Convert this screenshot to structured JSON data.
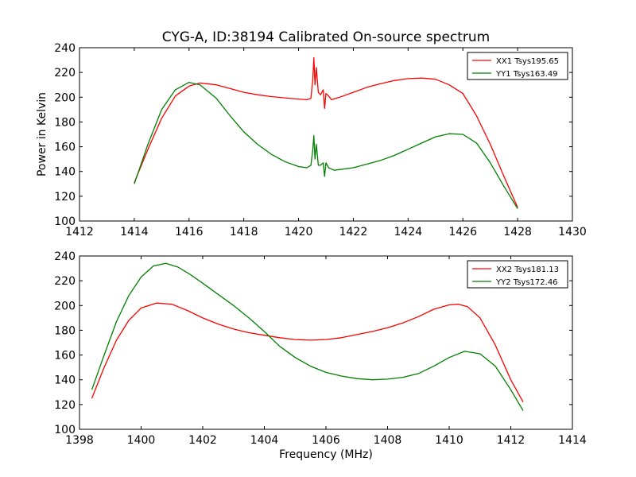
{
  "figure": {
    "title": "CYG-A, ID:38194 Calibrated On-source spectrum",
    "ylabel": "Power in Kelvin",
    "xlabel": "Frequency (MHz)"
  },
  "chart_data": [
    {
      "type": "line",
      "panel": "top",
      "xlim": [
        1412,
        1430
      ],
      "ylim": [
        100,
        240
      ],
      "xticks": [
        1412,
        1414,
        1416,
        1418,
        1420,
        1422,
        1424,
        1426,
        1428,
        1430
      ],
      "yticks": [
        100,
        120,
        140,
        160,
        180,
        200,
        220,
        240
      ],
      "grid": false,
      "legend": "top-right",
      "series": [
        {
          "name": "XX1 Tsys195.65",
          "color": "#ff0000",
          "points": [
            [
              1414.0,
              131
            ],
            [
              1414.5,
              158
            ],
            [
              1415.0,
              183
            ],
            [
              1415.5,
              201
            ],
            [
              1416.0,
              209
            ],
            [
              1416.4,
              211.5
            ],
            [
              1417.0,
              210
            ],
            [
              1417.5,
              207
            ],
            [
              1418.0,
              204
            ],
            [
              1418.5,
              202
            ],
            [
              1419.0,
              200.5
            ],
            [
              1419.5,
              199.5
            ],
            [
              1420.0,
              198.5
            ],
            [
              1420.3,
              198
            ],
            [
              1420.45,
              199
            ],
            [
              1420.52,
              215
            ],
            [
              1420.56,
              232
            ],
            [
              1420.6,
              210
            ],
            [
              1420.65,
              224
            ],
            [
              1420.72,
              204
            ],
            [
              1420.8,
              202
            ],
            [
              1420.9,
              206
            ],
            [
              1420.95,
              191
            ],
            [
              1421.0,
              203
            ],
            [
              1421.1,
              201
            ],
            [
              1421.2,
              198
            ],
            [
              1421.5,
              200
            ],
            [
              1422.0,
              204
            ],
            [
              1422.5,
              208
            ],
            [
              1423.0,
              211
            ],
            [
              1423.5,
              213.5
            ],
            [
              1424.0,
              215
            ],
            [
              1424.5,
              215.5
            ],
            [
              1425.0,
              214.5
            ],
            [
              1425.5,
              210
            ],
            [
              1426.0,
              203
            ],
            [
              1426.5,
              185
            ],
            [
              1427.0,
              162
            ],
            [
              1427.5,
              136
            ],
            [
              1428.0,
              111
            ]
          ]
        },
        {
          "name": "YY1 Tsys163.49",
          "color": "#008000",
          "points": [
            [
              1414.0,
              130
            ],
            [
              1414.5,
              162
            ],
            [
              1415.0,
              190
            ],
            [
              1415.5,
              206
            ],
            [
              1416.0,
              212
            ],
            [
              1416.4,
              210
            ],
            [
              1417.0,
              199
            ],
            [
              1417.5,
              185
            ],
            [
              1418.0,
              172
            ],
            [
              1418.5,
              162
            ],
            [
              1419.0,
              154
            ],
            [
              1419.5,
              148
            ],
            [
              1420.0,
              144
            ],
            [
              1420.3,
              143
            ],
            [
              1420.45,
              145
            ],
            [
              1420.52,
              158
            ],
            [
              1420.56,
              169
            ],
            [
              1420.6,
              150
            ],
            [
              1420.65,
              162
            ],
            [
              1420.72,
              145
            ],
            [
              1420.8,
              145
            ],
            [
              1420.9,
              147
            ],
            [
              1420.95,
              136
            ],
            [
              1421.0,
              147
            ],
            [
              1421.1,
              143
            ],
            [
              1421.3,
              141
            ],
            [
              1422.0,
              143
            ],
            [
              1422.5,
              146
            ],
            [
              1423.0,
              149
            ],
            [
              1423.5,
              153
            ],
            [
              1424.0,
              158
            ],
            [
              1424.5,
              163
            ],
            [
              1425.0,
              168
            ],
            [
              1425.5,
              170.5
            ],
            [
              1426.0,
              170
            ],
            [
              1426.5,
              163
            ],
            [
              1427.0,
              147
            ],
            [
              1427.5,
              128
            ],
            [
              1428.0,
              110
            ]
          ]
        }
      ]
    },
    {
      "type": "line",
      "panel": "bottom",
      "xlim": [
        1398,
        1414
      ],
      "ylim": [
        100,
        240
      ],
      "xticks": [
        1398,
        1400,
        1402,
        1404,
        1406,
        1408,
        1410,
        1412,
        1414
      ],
      "yticks": [
        100,
        120,
        140,
        160,
        180,
        200,
        220,
        240
      ],
      "grid": false,
      "legend": "top-right",
      "series": [
        {
          "name": "XX2 Tsys181.13",
          "color": "#ff0000",
          "points": [
            [
              1398.4,
              125
            ],
            [
              1398.8,
              150
            ],
            [
              1399.2,
              172
            ],
            [
              1399.6,
              188
            ],
            [
              1400.0,
              198
            ],
            [
              1400.5,
              202
            ],
            [
              1401.0,
              201
            ],
            [
              1401.5,
              196
            ],
            [
              1402.0,
              190
            ],
            [
              1402.5,
              185
            ],
            [
              1403.0,
              181
            ],
            [
              1403.5,
              178
            ],
            [
              1404.0,
              176
            ],
            [
              1404.5,
              174
            ],
            [
              1405.0,
              172.5
            ],
            [
              1405.5,
              172
            ],
            [
              1406.0,
              172.5
            ],
            [
              1406.5,
              174
            ],
            [
              1407.0,
              176.5
            ],
            [
              1407.5,
              179
            ],
            [
              1408.0,
              182
            ],
            [
              1408.5,
              186
            ],
            [
              1409.0,
              191
            ],
            [
              1409.5,
              197
            ],
            [
              1410.0,
              200.5
            ],
            [
              1410.3,
              201
            ],
            [
              1410.6,
              199
            ],
            [
              1411.0,
              190
            ],
            [
              1411.5,
              168
            ],
            [
              1412.0,
              140
            ],
            [
              1412.4,
              122
            ]
          ]
        },
        {
          "name": "YY2 Tsys172.46",
          "color": "#008000",
          "points": [
            [
              1398.4,
              132
            ],
            [
              1398.8,
              160
            ],
            [
              1399.2,
              187
            ],
            [
              1399.6,
              208
            ],
            [
              1400.0,
              223
            ],
            [
              1400.4,
              232
            ],
            [
              1400.8,
              234
            ],
            [
              1401.2,
              231
            ],
            [
              1401.6,
              225
            ],
            [
              1402.0,
              218
            ],
            [
              1402.5,
              209
            ],
            [
              1403.0,
              200
            ],
            [
              1403.5,
              190
            ],
            [
              1404.0,
              179
            ],
            [
              1404.5,
              167
            ],
            [
              1405.0,
              158
            ],
            [
              1405.5,
              151
            ],
            [
              1406.0,
              146
            ],
            [
              1406.5,
              143
            ],
            [
              1407.0,
              141
            ],
            [
              1407.5,
              140
            ],
            [
              1408.0,
              140.5
            ],
            [
              1408.5,
              142
            ],
            [
              1409.0,
              145
            ],
            [
              1409.5,
              151
            ],
            [
              1410.0,
              158
            ],
            [
              1410.5,
              163
            ],
            [
              1411.0,
              161
            ],
            [
              1411.5,
              151
            ],
            [
              1412.0,
              132
            ],
            [
              1412.4,
              115
            ]
          ]
        }
      ]
    }
  ]
}
